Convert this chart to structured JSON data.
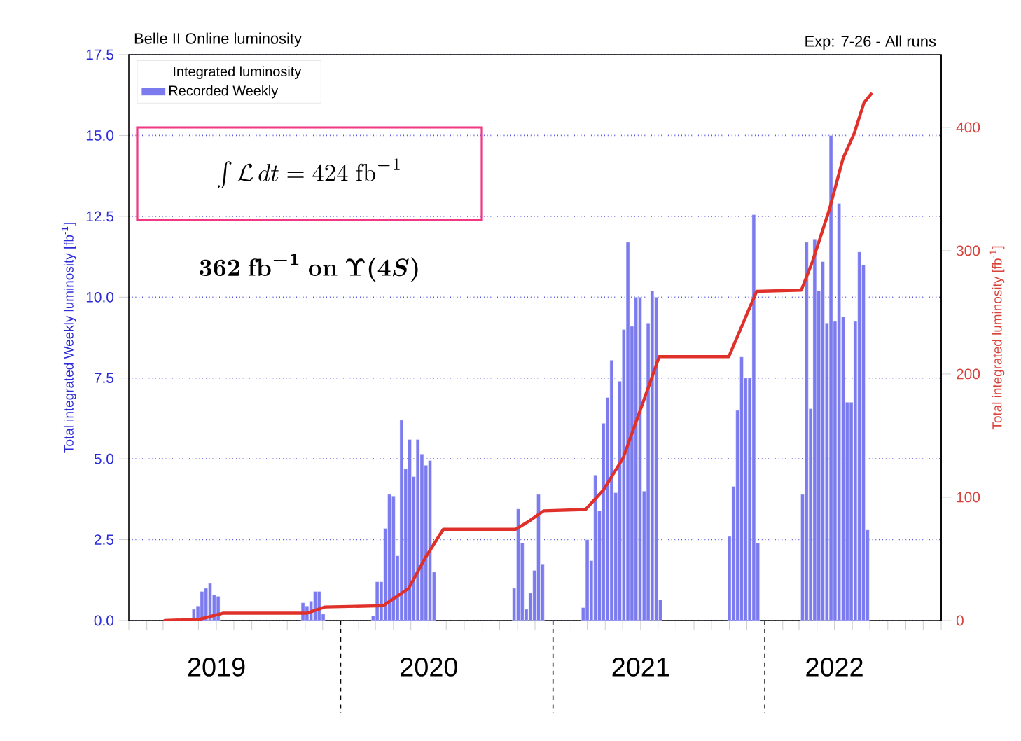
{
  "chart_data": {
    "type": "bar",
    "title": "Belle II Online luminosity",
    "subtitle": "Exp: 7-26 - All runs",
    "ylabel": "Total integrated Weekly luminosity [fb$^{-1}$]",
    "y2label": "Total integrated luminosity [fb$^{-1}$]",
    "legend_title": "Integrated luminosity",
    "legend": "top left",
    "grid": "y",
    "annotations": [
      "\\int \\mathcal{L}\\, dt = 424\\ \\mathrm{fb}^{-1}",
      "\\boldsymbol{362\\ \\mathrm{fb}^{-1}\\ \\mathrm{on}\\ \\Upsilon(4S)}"
    ],
    "series": [
      {
        "name": "Recorded Weekly",
        "color": "#7b7bef",
        "x": [
          "2019-04-23",
          "2019-04-30",
          "2019-05-07",
          "2019-05-14",
          "2019-05-21",
          "2019-05-28",
          "2019-06-04",
          "2019-10-28",
          "2019-11-04",
          "2019-11-11",
          "2019-11-18",
          "2019-11-25",
          "2019-12-02",
          "2020-02-26",
          "2020-03-04",
          "2020-03-11",
          "2020-03-18",
          "2020-03-25",
          "2020-04-01",
          "2020-04-08",
          "2020-04-15",
          "2020-04-22",
          "2020-04-29",
          "2020-05-06",
          "2020-05-13",
          "2020-05-20",
          "2020-05-27",
          "2020-06-03",
          "2020-06-10",
          "2020-10-26",
          "2020-11-02",
          "2020-11-09",
          "2020-11-16",
          "2020-11-23",
          "2020-11-30",
          "2020-12-07",
          "2020-12-14",
          "2021-02-22",
          "2021-03-01",
          "2021-03-08",
          "2021-03-15",
          "2021-03-22",
          "2021-03-29",
          "2021-04-05",
          "2021-04-12",
          "2021-04-19",
          "2021-04-26",
          "2021-05-03",
          "2021-05-10",
          "2021-05-17",
          "2021-05-24",
          "2021-05-31",
          "2021-06-07",
          "2021-06-14",
          "2021-06-21",
          "2021-06-28",
          "2021-07-05",
          "2021-11-01",
          "2021-11-08",
          "2021-11-15",
          "2021-11-22",
          "2021-11-29",
          "2021-12-06",
          "2021-12-13",
          "2021-12-20",
          "2022-03-07",
          "2022-03-14",
          "2022-03-21",
          "2022-03-28",
          "2022-04-04",
          "2022-04-11",
          "2022-04-18",
          "2022-04-25",
          "2022-05-02",
          "2022-05-09",
          "2022-05-16",
          "2022-05-23",
          "2022-05-30",
          "2022-06-06",
          "2022-06-13",
          "2022-06-20",
          "2022-06-27"
        ],
        "values": [
          0.35,
          0.45,
          0.9,
          1.0,
          1.15,
          0.8,
          0.75,
          0.55,
          0.45,
          0.6,
          0.9,
          0.9,
          0.2,
          0.15,
          1.2,
          1.2,
          2.85,
          3.9,
          3.85,
          2.0,
          6.2,
          4.7,
          5.6,
          4.45,
          5.6,
          5.15,
          4.8,
          4.95,
          1.5,
          1.0,
          3.45,
          2.4,
          0.35,
          0.85,
          1.55,
          3.9,
          1.75,
          0.4,
          2.5,
          1.85,
          4.5,
          3.4,
          6.1,
          6.9,
          8.05,
          3.95,
          7.4,
          9.0,
          11.7,
          9.1,
          10.0,
          10.0,
          4.0,
          9.2,
          10.2,
          10.0,
          0.65,
          2.6,
          4.15,
          6.5,
          8.15,
          7.5,
          7.5,
          12.55,
          2.4,
          3.9,
          11.7,
          6.55,
          11.8,
          10.2,
          11.1,
          9.2,
          15.0,
          9.25,
          12.9,
          9.4,
          6.75,
          6.75,
          9.25,
          11.4,
          11.0,
          2.8
        ]
      },
      {
        "type": "line",
        "axis": "y2",
        "color": "#e0302a",
        "x": [
          "2019-03-04",
          "2019-05-03",
          "2019-06-13",
          "2019-11-04",
          "2019-12-05",
          "2020-03-14",
          "2020-04-27",
          "2020-05-26",
          "2020-06-26",
          "2020-10-29",
          "2020-11-22",
          "2020-12-16",
          "2021-02-26",
          "2021-03-29",
          "2021-05-02",
          "2021-06-09",
          "2021-07-03",
          "2021-10-31",
          "2021-12-18",
          "2022-03-05",
          "2022-03-24",
          "2022-04-22",
          "2022-05-16",
          "2022-06-04",
          "2022-06-21",
          "2022-07-03"
        ],
        "values": [
          0,
          1,
          6,
          6,
          11,
          12,
          26,
          51,
          74,
          74,
          81,
          89,
          90,
          106,
          132,
          182,
          214,
          214,
          267,
          268,
          291,
          333,
          375,
          395,
          420,
          427
        ]
      }
    ],
    "xlim": [
      "2019-01-01",
      "2022-11-01"
    ],
    "xticks": [
      {
        "value": "2019-01-01",
        "label": null
      },
      {
        "value": "2019-02-01",
        "label": null
      },
      {
        "value": "2019-03-01",
        "label": null
      },
      {
        "value": "2019-04-01",
        "label": null
      },
      {
        "value": "2019-05-01",
        "label": null
      },
      {
        "value": "2019-06-01",
        "label": "2019"
      },
      {
        "value": "2019-07-01",
        "label": null
      },
      {
        "value": "2019-08-01",
        "label": null
      },
      {
        "value": "2019-09-01",
        "label": null
      },
      {
        "value": "2019-10-01",
        "label": null
      },
      {
        "value": "2019-11-01",
        "label": null
      },
      {
        "value": "2019-12-01",
        "label": null
      },
      {
        "value": "2020-01-01",
        "label": null
      },
      {
        "value": "2020-02-01",
        "label": null
      },
      {
        "value": "2020-03-01",
        "label": null
      },
      {
        "value": "2020-04-01",
        "label": null
      },
      {
        "value": "2020-05-01",
        "label": null
      },
      {
        "value": "2020-06-01",
        "label": "2020"
      },
      {
        "value": "2020-07-01",
        "label": null
      },
      {
        "value": "2020-08-01",
        "label": null
      },
      {
        "value": "2020-09-01",
        "label": null
      },
      {
        "value": "2020-10-01",
        "label": null
      },
      {
        "value": "2020-11-01",
        "label": null
      },
      {
        "value": "2020-12-01",
        "label": null
      },
      {
        "value": "2021-01-01",
        "label": null
      },
      {
        "value": "2021-02-01",
        "label": null
      },
      {
        "value": "2021-03-01",
        "label": null
      },
      {
        "value": "2021-04-01",
        "label": null
      },
      {
        "value": "2021-05-01",
        "label": null
      },
      {
        "value": "2021-06-01",
        "label": "2021"
      },
      {
        "value": "2021-07-01",
        "label": null
      },
      {
        "value": "2021-08-01",
        "label": null
      },
      {
        "value": "2021-09-01",
        "label": null
      },
      {
        "value": "2021-10-01",
        "label": null
      },
      {
        "value": "2021-11-01",
        "label": null
      },
      {
        "value": "2021-12-01",
        "label": null
      },
      {
        "value": "2022-01-01",
        "label": null
      },
      {
        "value": "2022-02-01",
        "label": null
      },
      {
        "value": "2022-03-01",
        "label": null
      },
      {
        "value": "2022-04-01",
        "label": null
      },
      {
        "value": "2022-05-01",
        "label": "2022"
      },
      {
        "value": "2022-06-01",
        "label": null
      },
      {
        "value": "2022-07-01",
        "label": null
      },
      {
        "value": "2022-08-01",
        "label": null
      },
      {
        "value": "2022-09-01",
        "label": null
      },
      {
        "value": "2022-10-01",
        "label": null
      },
      {
        "value": "2022-11-01",
        "label": null
      }
    ],
    "ylim": [
      0,
      17.5
    ],
    "yticks": [
      {
        "value": 0,
        "label": "0.0"
      },
      {
        "value": 2.5,
        "label": "2.5"
      },
      {
        "value": 5,
        "label": "5.0"
      },
      {
        "value": 7.5,
        "label": "7.5"
      },
      {
        "value": 10,
        "label": "10.0"
      },
      {
        "value": 12.5,
        "label": "12.5"
      },
      {
        "value": 15,
        "label": "15.0"
      },
      {
        "value": 17.5,
        "label": "17.5"
      }
    ],
    "y2lim": [
      0,
      459
    ],
    "y2ticks": [
      0,
      100,
      200,
      300,
      400
    ]
  }
}
